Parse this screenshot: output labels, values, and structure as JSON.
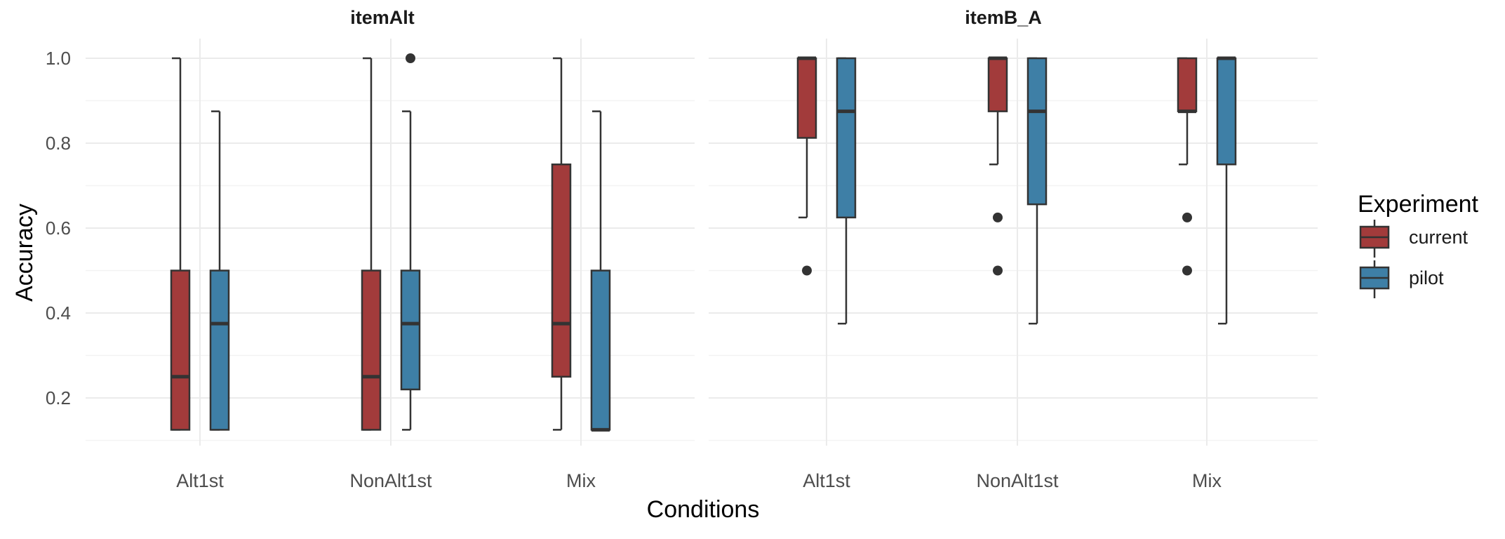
{
  "chart_data": {
    "type": "box",
    "xlabel": "Conditions",
    "ylabel": "Accuracy",
    "y_ticks": [
      "0.2",
      "0.4",
      "0.6",
      "0.8",
      "1.0"
    ],
    "y_tick_values": [
      0.2,
      0.4,
      0.6,
      0.8,
      1.0
    ],
    "ylim": [
      0.03,
      0.93
    ],
    "ylim_note": "",
    "categories": [
      "Alt1st",
      "NonAlt1st",
      "Mix"
    ],
    "legend": {
      "title": "Experiment",
      "placement": "right",
      "entries": [
        {
          "name": "current",
          "color": "#A23B3B"
        },
        {
          "name": "pilot",
          "color": "#3E7FA6"
        }
      ]
    },
    "grid": true,
    "panels": [
      {
        "title": "itemAlt",
        "boxes": [
          {
            "category": "Alt1st",
            "series": "current",
            "low": 0.125,
            "q1": 0.125,
            "median": 0.25,
            "q3": 0.5,
            "high": 1.0,
            "outliers": []
          },
          {
            "category": "Alt1st",
            "series": "pilot",
            "low": 0.125,
            "q1": 0.125,
            "median": 0.375,
            "q3": 0.5,
            "high": 0.875,
            "outliers": []
          },
          {
            "category": "NonAlt1st",
            "series": "current",
            "low": 0.125,
            "q1": 0.125,
            "median": 0.25,
            "q3": 0.5,
            "high": 1.0,
            "outliers": []
          },
          {
            "category": "NonAlt1st",
            "series": "pilot",
            "low": 0.125,
            "q1": 0.22,
            "median": 0.375,
            "q3": 0.5,
            "high": 0.875,
            "outliers": [
              1.0
            ]
          },
          {
            "category": "Mix",
            "series": "current",
            "low": 0.125,
            "q1": 0.25,
            "median": 0.375,
            "q3": 0.75,
            "high": 1.0,
            "outliers": []
          },
          {
            "category": "Mix",
            "series": "pilot",
            "low": 0.125,
            "q1": 0.125,
            "median": 0.125,
            "q3": 0.5,
            "high": 0.875,
            "outliers": []
          }
        ]
      },
      {
        "title": "itemB_A",
        "boxes": [
          {
            "category": "Alt1st",
            "series": "current",
            "low": 0.625,
            "q1": 0.8125,
            "median": 1.0,
            "q3": 1.0,
            "high": 1.0,
            "outliers": [
              0.5
            ]
          },
          {
            "category": "Alt1st",
            "series": "pilot",
            "low": 0.375,
            "q1": 0.625,
            "median": 0.875,
            "q3": 1.0,
            "high": 1.0,
            "outliers": []
          },
          {
            "category": "NonAlt1st",
            "series": "current",
            "low": 0.75,
            "q1": 0.875,
            "median": 1.0,
            "q3": 1.0,
            "high": 1.0,
            "outliers": [
              0.625,
              0.5
            ]
          },
          {
            "category": "NonAlt1st",
            "series": "pilot",
            "low": 0.375,
            "q1": 0.656,
            "median": 0.875,
            "q3": 1.0,
            "high": 1.0,
            "outliers": []
          },
          {
            "category": "Mix",
            "series": "current",
            "low": 0.75,
            "q1": 0.875,
            "median": 0.875,
            "q3": 1.0,
            "high": 1.0,
            "outliers": [
              0.625,
              0.5
            ]
          },
          {
            "category": "Mix",
            "series": "pilot",
            "low": 0.375,
            "q1": 0.75,
            "median": 1.0,
            "q3": 1.0,
            "high": 1.0,
            "outliers": []
          }
        ]
      }
    ]
  }
}
